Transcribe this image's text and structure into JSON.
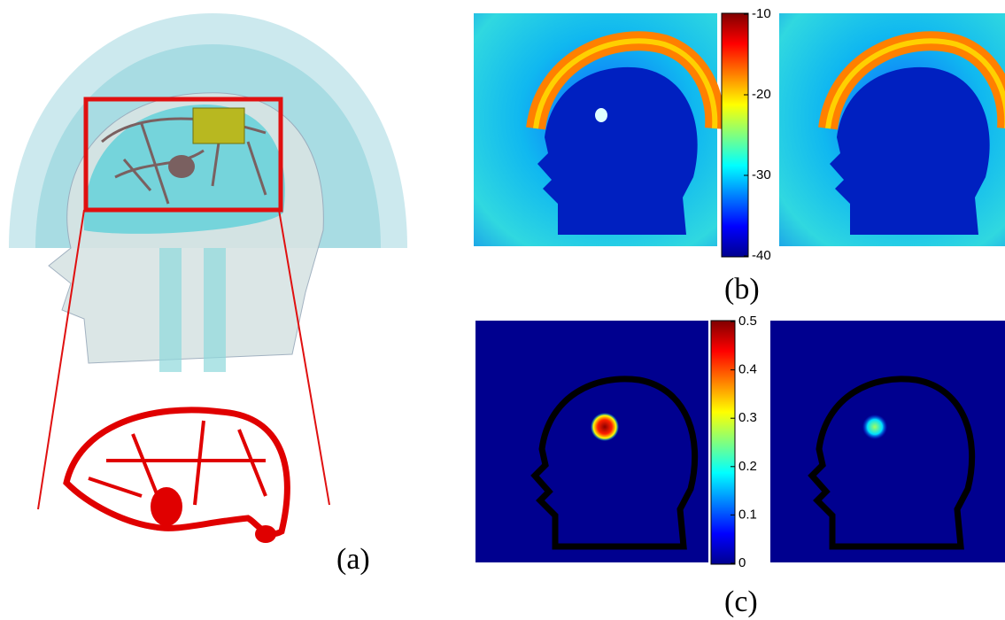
{
  "panels": {
    "a": {
      "label": "(a)"
    },
    "b": {
      "label": "(b)"
    },
    "c": {
      "label": "(c)"
    }
  },
  "colorbars": [
    {
      "lim": [
        -40,
        -10
      ],
      "ticks": [
        -10,
        -20,
        -30,
        -40
      ]
    },
    {
      "lim": [
        0,
        0.5
      ],
      "ticks": [
        0.5,
        0.4,
        0.3,
        0.2,
        0.1,
        0
      ]
    }
  ]
}
